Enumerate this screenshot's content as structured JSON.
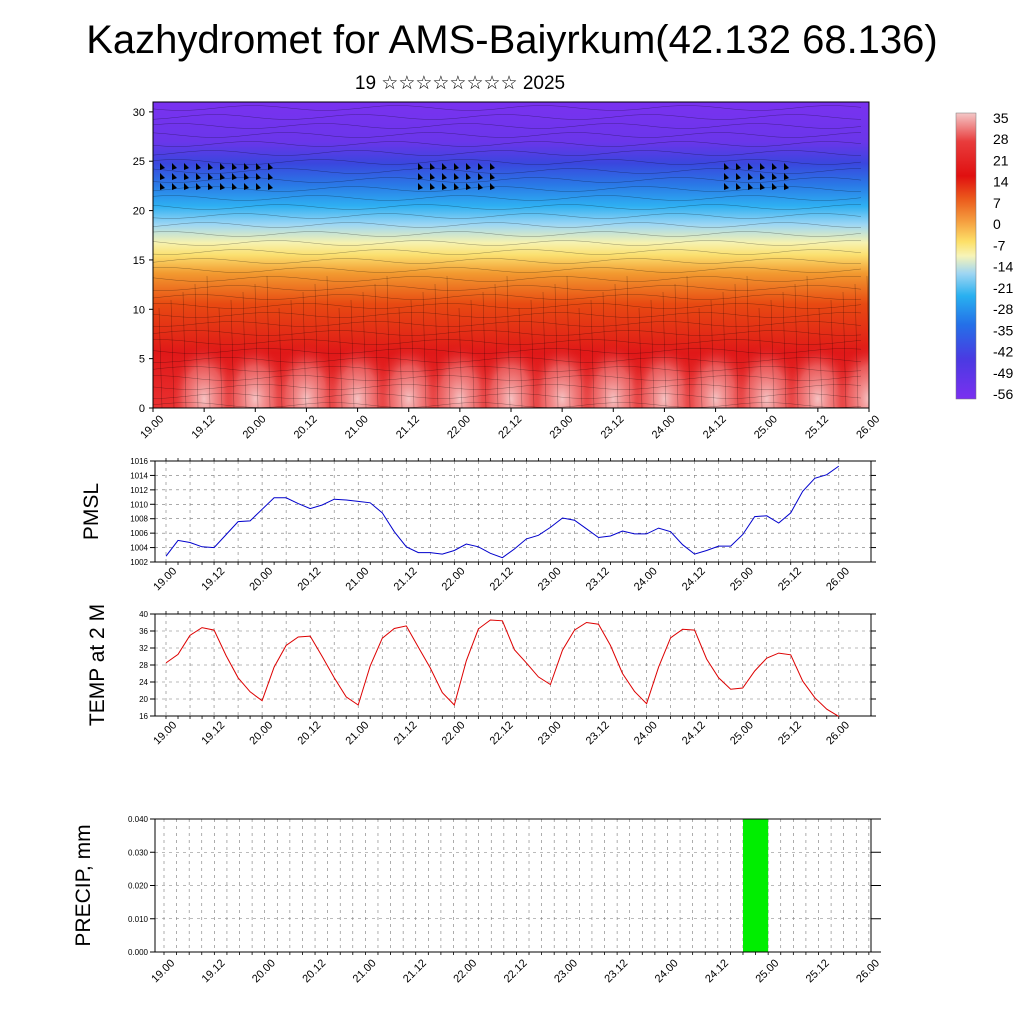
{
  "title": "Kazhydromet for AMS-Baiyrkum(42.132 68.136)",
  "subtitle": "19 ☆☆☆☆☆☆☆☆ 2025",
  "colorbar": {
    "labels": [
      "35",
      "28",
      "21",
      "14",
      "7",
      "0",
      "-7",
      "-14",
      "-21",
      "-28",
      "-35",
      "-42",
      "-49",
      "-56"
    ],
    "colors": [
      "#f4c2c2",
      "#e84a4a",
      "#e01010",
      "#e83a10",
      "#f0702a",
      "#f6a040",
      "#fde87a",
      "#f8f4b0",
      "#a8d8f0",
      "#30b0f0",
      "#2070e8",
      "#3040e0",
      "#6030e8",
      "#7a30f0"
    ]
  },
  "x_labels": [
    "19.00",
    "19.12",
    "20.00",
    "20.12",
    "21.00",
    "21.12",
    "22.00",
    "22.12",
    "23.00",
    "23.12",
    "24.00",
    "24.12",
    "25.00",
    "25.12",
    "26.00"
  ],
  "chart_data": [
    {
      "type": "heatmap",
      "name_hint": "vertical cross-section temperature and wind",
      "xlabel": "",
      "ylabel": "",
      "ylim": [
        0,
        31
      ],
      "y_ticks": [
        0,
        5,
        10,
        15,
        20,
        25,
        30
      ],
      "x_labels": [
        "19.00",
        "19.12",
        "20.00",
        "20.12",
        "21.00",
        "21.12",
        "22.00",
        "22.12",
        "23.00",
        "23.12",
        "24.00",
        "24.12",
        "25.00",
        "25.12",
        "26.00"
      ],
      "colorbar_range": [
        -56,
        35
      ]
    },
    {
      "type": "line",
      "ylabel": "PMSL",
      "ylim": [
        1002,
        1016
      ],
      "y_ticks": [
        1002,
        1004,
        1006,
        1008,
        1010,
        1012,
        1014,
        1016
      ],
      "color": "#0000cc",
      "values": [
        1002.8,
        1005.0,
        1004.7,
        1004.1,
        1004.0,
        1005.8,
        1007.6,
        1007.7,
        1009.3,
        1010.9,
        1010.9,
        1010.1,
        1009.4,
        1009.9,
        1010.7,
        1010.6,
        1010.4,
        1010.2,
        1008.8,
        1006.2,
        1004.1,
        1003.3,
        1003.3,
        1003.1,
        1003.6,
        1004.5,
        1004.1,
        1003.2,
        1002.6,
        1003.8,
        1005.2,
        1005.7,
        1006.8,
        1008.1,
        1007.8,
        1006.6,
        1005.4,
        1005.6,
        1006.3,
        1005.9,
        1005.9,
        1006.7,
        1006.2,
        1004.4,
        1003.1,
        1003.6,
        1004.2,
        1004.2,
        1005.8,
        1008.3,
        1008.4,
        1007.4,
        1008.8,
        1011.8,
        1013.6,
        1014.1,
        1015.3
      ]
    },
    {
      "type": "line",
      "ylabel": "TEMP at 2 M",
      "ylim": [
        16,
        40
      ],
      "y_ticks": [
        16,
        20,
        24,
        28,
        32,
        36,
        40
      ],
      "color": "#dd0000",
      "values": [
        28.5,
        30.5,
        35.0,
        36.8,
        36.2,
        30.2,
        25.0,
        21.7,
        19.6,
        27.5,
        32.6,
        34.6,
        34.8,
        30.0,
        25.0,
        20.5,
        18.6,
        27.8,
        34.3,
        36.6,
        37.2,
        32.2,
        27.3,
        21.5,
        18.6,
        29.0,
        36.5,
        38.6,
        38.4,
        31.6,
        28.5,
        25.2,
        23.4,
        31.5,
        36.2,
        38.0,
        37.6,
        32.6,
        26.0,
        21.8,
        18.9,
        27.5,
        34.4,
        36.4,
        36.2,
        29.4,
        25.0,
        22.3,
        22.6,
        26.6,
        29.6,
        30.8,
        30.4,
        24.2,
        20.3,
        17.6,
        15.9
      ]
    },
    {
      "type": "bar",
      "ylabel": "PRECIP, mm",
      "ylim": [
        0,
        0.04
      ],
      "y_ticks": [
        "0.000",
        "0.010",
        "0.020",
        "0.030",
        "0.040"
      ],
      "color": "#00ee00",
      "bars": [
        {
          "x_start": "24.18",
          "x_end": "25.00",
          "value": 0.04
        }
      ]
    }
  ]
}
